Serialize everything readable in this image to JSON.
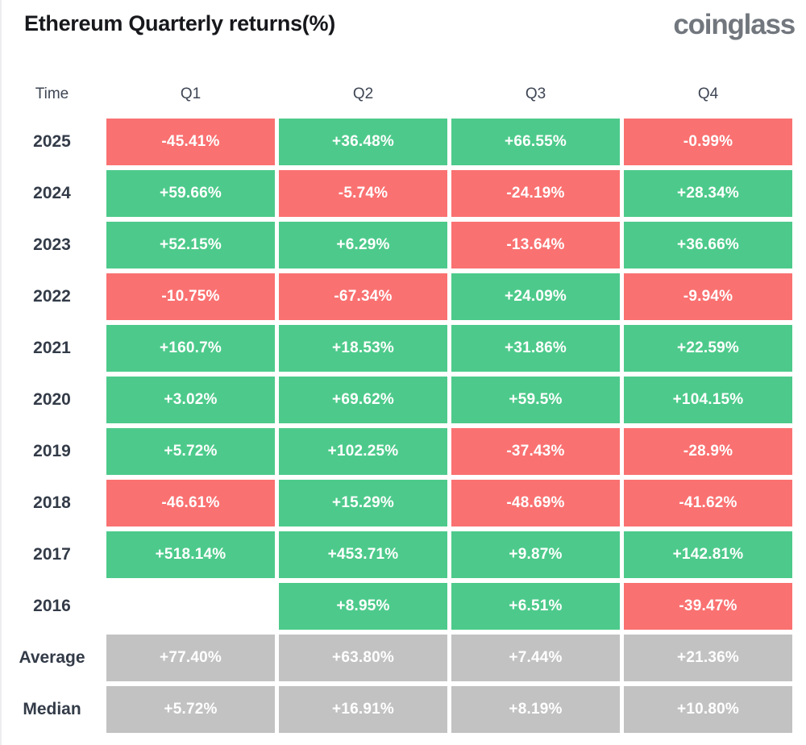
{
  "header": {
    "title": "Ethereum Quarterly returns(%)",
    "logo": "coinglass"
  },
  "colors": {
    "positive": "#4dca8b",
    "negative": "#fa7171",
    "summary": "#c2c2c2",
    "cell_text": "#ffffff",
    "title_text": "#17181c",
    "logo_text": "#72777e",
    "label_text": "#333b48"
  },
  "chart_data": {
    "type": "heatmap",
    "title": "Ethereum Quarterly returns(%)",
    "corner_label": "Time",
    "columns": [
      "Q1",
      "Q2",
      "Q3",
      "Q4"
    ],
    "rows": [
      {
        "label": "2025",
        "kind": "year",
        "values": [
          "-45.41%",
          "+36.48%",
          "+66.55%",
          "-0.99%"
        ]
      },
      {
        "label": "2024",
        "kind": "year",
        "values": [
          "+59.66%",
          "-5.74%",
          "-24.19%",
          "+28.34%"
        ]
      },
      {
        "label": "2023",
        "kind": "year",
        "values": [
          "+52.15%",
          "+6.29%",
          "-13.64%",
          "+36.66%"
        ]
      },
      {
        "label": "2022",
        "kind": "year",
        "values": [
          "-10.75%",
          "-67.34%",
          "+24.09%",
          "-9.94%"
        ]
      },
      {
        "label": "2021",
        "kind": "year",
        "values": [
          "+160.7%",
          "+18.53%",
          "+31.86%",
          "+22.59%"
        ]
      },
      {
        "label": "2020",
        "kind": "year",
        "values": [
          "+3.02%",
          "+69.62%",
          "+59.5%",
          "+104.15%"
        ]
      },
      {
        "label": "2019",
        "kind": "year",
        "values": [
          "+5.72%",
          "+102.25%",
          "-37.43%",
          "-28.9%"
        ]
      },
      {
        "label": "2018",
        "kind": "year",
        "values": [
          "-46.61%",
          "+15.29%",
          "-48.69%",
          "-41.62%"
        ]
      },
      {
        "label": "2017",
        "kind": "year",
        "values": [
          "+518.14%",
          "+453.71%",
          "+9.87%",
          "+142.81%"
        ]
      },
      {
        "label": "2016",
        "kind": "year",
        "values": [
          null,
          "+8.95%",
          "+6.51%",
          "-39.47%"
        ]
      },
      {
        "label": "Average",
        "kind": "summary",
        "values": [
          "+77.40%",
          "+63.80%",
          "+7.44%",
          "+21.36%"
        ]
      },
      {
        "label": "Median",
        "kind": "summary",
        "values": [
          "+5.72%",
          "+16.91%",
          "+8.19%",
          "+10.80%"
        ]
      }
    ]
  }
}
